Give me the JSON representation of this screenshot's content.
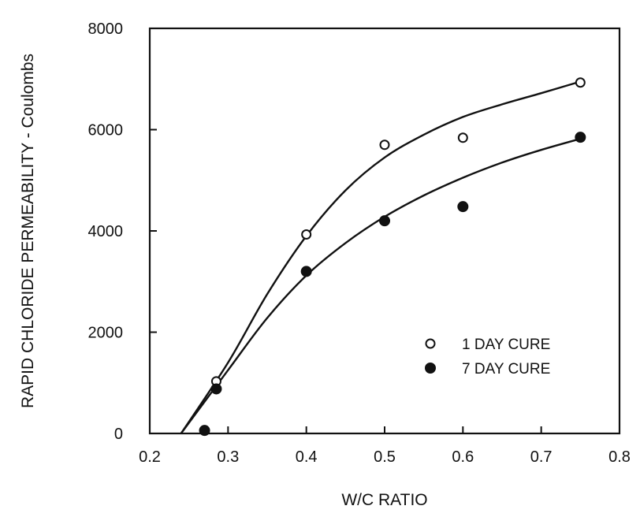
{
  "chart_data": {
    "type": "scatter",
    "title": "",
    "xlabel": "W/C RATIO",
    "ylabel": "RAPID CHLORIDE PERMEABILITY - Coulombs",
    "xlim": [
      0.2,
      0.8
    ],
    "ylim": [
      0,
      8000
    ],
    "x_ticks": [
      "0.2",
      "0.3",
      "0.4",
      "0.5",
      "0.6",
      "0.7",
      "0.8"
    ],
    "y_ticks": [
      "0",
      "2000",
      "4000",
      "6000",
      "8000"
    ],
    "grid": false,
    "legend_position": "center-right",
    "series": [
      {
        "name": "1 DAY CURE",
        "marker": "open-circle",
        "points": [
          {
            "x": 0.285,
            "y": 1030
          },
          {
            "x": 0.4,
            "y": 3930
          },
          {
            "x": 0.5,
            "y": 5700
          },
          {
            "x": 0.6,
            "y": 5840
          },
          {
            "x": 0.75,
            "y": 6930
          }
        ],
        "trend": [
          {
            "x": 0.24,
            "y": 0
          },
          {
            "x": 0.3,
            "y": 1400
          },
          {
            "x": 0.35,
            "y": 2750
          },
          {
            "x": 0.4,
            "y": 3900
          },
          {
            "x": 0.45,
            "y": 4800
          },
          {
            "x": 0.5,
            "y": 5450
          },
          {
            "x": 0.55,
            "y": 5900
          },
          {
            "x": 0.6,
            "y": 6250
          },
          {
            "x": 0.65,
            "y": 6500
          },
          {
            "x": 0.7,
            "y": 6720
          },
          {
            "x": 0.75,
            "y": 6950
          }
        ]
      },
      {
        "name": "7 DAY CURE",
        "marker": "filled-circle",
        "points": [
          {
            "x": 0.27,
            "y": 60
          },
          {
            "x": 0.285,
            "y": 880
          },
          {
            "x": 0.4,
            "y": 3200
          },
          {
            "x": 0.5,
            "y": 4200
          },
          {
            "x": 0.6,
            "y": 4480
          },
          {
            "x": 0.75,
            "y": 5850
          }
        ],
        "trend": [
          {
            "x": 0.24,
            "y": 0
          },
          {
            "x": 0.3,
            "y": 1250
          },
          {
            "x": 0.35,
            "y": 2280
          },
          {
            "x": 0.4,
            "y": 3120
          },
          {
            "x": 0.45,
            "y": 3760
          },
          {
            "x": 0.5,
            "y": 4280
          },
          {
            "x": 0.55,
            "y": 4700
          },
          {
            "x": 0.6,
            "y": 5050
          },
          {
            "x": 0.65,
            "y": 5350
          },
          {
            "x": 0.7,
            "y": 5600
          },
          {
            "x": 0.75,
            "y": 5820
          }
        ]
      }
    ]
  }
}
